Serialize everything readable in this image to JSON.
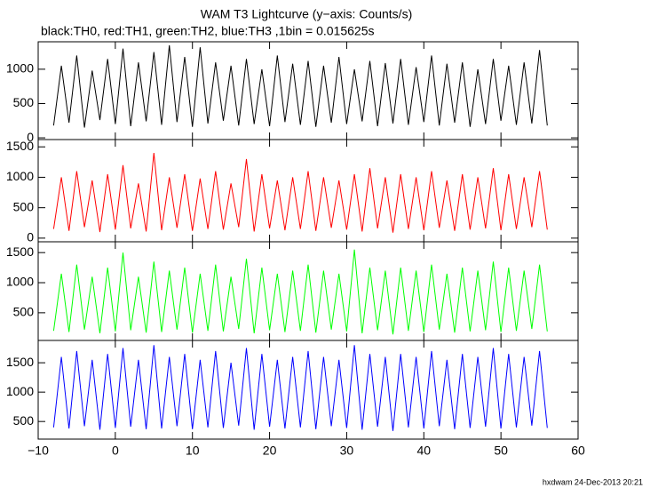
{
  "chart_data": [
    {
      "type": "line",
      "title": "WAM T3 Lightcurve (y−axis: Counts/s)",
      "subtitle": "black:TH0, red:TH1, green:TH2, blue:TH3 ,1bin = 0.015625s",
      "x": [
        -8,
        -7,
        -6,
        -5,
        -4,
        -3,
        -2,
        -1,
        0,
        1,
        2,
        3,
        4,
        5,
        6,
        7,
        8,
        9,
        10,
        11,
        12,
        13,
        14,
        15,
        16,
        17,
        18,
        19,
        20,
        21,
        22,
        23,
        24,
        25,
        26,
        27,
        28,
        29,
        30,
        31,
        32,
        33,
        34,
        35,
        36,
        37,
        38,
        39,
        40,
        41,
        42,
        43,
        44,
        45,
        46,
        47,
        48,
        49,
        50,
        51,
        52,
        53,
        54,
        55,
        56
      ],
      "series": [
        {
          "color": "#000000",
          "values": [
            180,
            1050,
            220,
            1200,
            150,
            980,
            260,
            1150,
            200,
            1300,
            170,
            1100,
            240,
            1250,
            190,
            1350,
            230,
            1180,
            160,
            1320,
            210,
            1100,
            250,
            1050,
            180,
            1150,
            200,
            1000,
            170,
            1200,
            230,
            1080,
            190,
            1120,
            160,
            1050,
            220,
            1180,
            200,
            1000,
            240,
            1120,
            170,
            1090,
            210,
            1150,
            190,
            1030,
            230,
            1200,
            180,
            1080,
            220,
            1100,
            160,
            1000,
            200,
            1150,
            250,
            1050,
            190,
            1100,
            210,
            1280,
            180
          ]
        }
      ],
      "xlim": [
        -10,
        60
      ],
      "ylim": [
        -25,
        1400
      ],
      "yticks": [
        0,
        500,
        1000
      ]
    },
    {
      "type": "line",
      "x": [
        -8,
        -7,
        -6,
        -5,
        -4,
        -3,
        -2,
        -1,
        0,
        1,
        2,
        3,
        4,
        5,
        6,
        7,
        8,
        9,
        10,
        11,
        12,
        13,
        14,
        15,
        16,
        17,
        18,
        19,
        20,
        21,
        22,
        23,
        24,
        25,
        26,
        27,
        28,
        29,
        30,
        31,
        32,
        33,
        34,
        35,
        36,
        37,
        38,
        39,
        40,
        41,
        42,
        43,
        44,
        45,
        46,
        47,
        48,
        49,
        50,
        51,
        52,
        53,
        54,
        55,
        56
      ],
      "series": [
        {
          "color": "#ff0000",
          "values": [
            150,
            1000,
            120,
            1100,
            180,
            950,
            100,
            1050,
            140,
            1200,
            160,
            900,
            110,
            1400,
            130,
            1000,
            170,
            1050,
            120,
            980,
            150,
            1100,
            140,
            900,
            180,
            1300,
            110,
            1050,
            160,
            950,
            130,
            1000,
            150,
            1100,
            120,
            1000,
            170,
            950,
            140,
            1050,
            110,
            1150,
            160,
            1000,
            90,
            1050,
            150,
            1000,
            130,
            1100,
            170,
            950,
            120,
            1050,
            140,
            1000,
            160,
            1150,
            130,
            1050,
            150,
            1000,
            180,
            1100,
            140
          ]
        }
      ],
      "xlim": [
        -10,
        60
      ],
      "ylim": [
        -60,
        1620
      ],
      "yticks": [
        0,
        500,
        1000,
        1500
      ]
    },
    {
      "type": "line",
      "x": [
        -8,
        -7,
        -6,
        -5,
        -4,
        -3,
        -2,
        -1,
        0,
        1,
        2,
        3,
        4,
        5,
        6,
        7,
        8,
        9,
        10,
        11,
        12,
        13,
        14,
        15,
        16,
        17,
        18,
        19,
        20,
        21,
        22,
        23,
        24,
        25,
        26,
        27,
        28,
        29,
        30,
        31,
        32,
        33,
        34,
        35,
        36,
        37,
        38,
        39,
        40,
        41,
        42,
        43,
        44,
        45,
        46,
        47,
        48,
        49,
        50,
        51,
        52,
        53,
        54,
        55,
        56
      ],
      "series": [
        {
          "color": "#00ff00",
          "values": [
            200,
            1150,
            180,
            1300,
            220,
            1100,
            160,
            1250,
            190,
            1500,
            210,
            1100,
            170,
            1350,
            180,
            1200,
            220,
            1250,
            170,
            1150,
            200,
            1300,
            190,
            1100,
            230,
            1400,
            160,
            1250,
            210,
            1150,
            180,
            1200,
            200,
            1300,
            170,
            1200,
            220,
            1150,
            190,
            1550,
            160,
            1250,
            210,
            1200,
            140,
            1250,
            200,
            1200,
            180,
            1300,
            220,
            1150,
            170,
            1250,
            190,
            1200,
            210,
            1350,
            180,
            1250,
            200,
            1200,
            230,
            1300,
            190
          ]
        }
      ],
      "xlim": [
        -10,
        60
      ],
      "ylim": [
        40,
        1680
      ],
      "yticks": [
        500,
        1000,
        1500
      ]
    },
    {
      "type": "line",
      "x": [
        -8,
        -7,
        -6,
        -5,
        -4,
        -3,
        -2,
        -1,
        0,
        1,
        2,
        3,
        4,
        5,
        6,
        7,
        8,
        9,
        10,
        11,
        12,
        13,
        14,
        15,
        16,
        17,
        18,
        19,
        20,
        21,
        22,
        23,
        24,
        25,
        26,
        27,
        28,
        29,
        30,
        31,
        32,
        33,
        34,
        35,
        36,
        37,
        38,
        39,
        40,
        41,
        42,
        43,
        44,
        45,
        46,
        47,
        48,
        49,
        50,
        51,
        52,
        53,
        54,
        55,
        56
      ],
      "series": [
        {
          "color": "#0000ff",
          "values": [
            400,
            1600,
            380,
            1700,
            420,
            1550,
            360,
            1650,
            390,
            1750,
            410,
            1550,
            370,
            1800,
            380,
            1600,
            420,
            1650,
            370,
            1550,
            400,
            1700,
            390,
            1500,
            430,
            1750,
            360,
            1650,
            410,
            1550,
            380,
            1600,
            400,
            1700,
            370,
            1600,
            420,
            1550,
            390,
            1800,
            360,
            1650,
            410,
            1600,
            340,
            1650,
            400,
            1600,
            380,
            1700,
            420,
            1550,
            370,
            1650,
            390,
            1600,
            410,
            1750,
            380,
            1650,
            400,
            1600,
            430,
            1700,
            390
          ]
        }
      ],
      "xlim": [
        -10,
        60
      ],
      "ylim": [
        200,
        1880
      ],
      "yticks": [
        500,
        1000,
        1500
      ],
      "xticks": [
        {
          "value": -10,
          "label": "−10"
        },
        0,
        10,
        20,
        30,
        40,
        50,
        60
      ]
    }
  ],
  "footer": "hxdwam 24-Dec-2013 20:21"
}
